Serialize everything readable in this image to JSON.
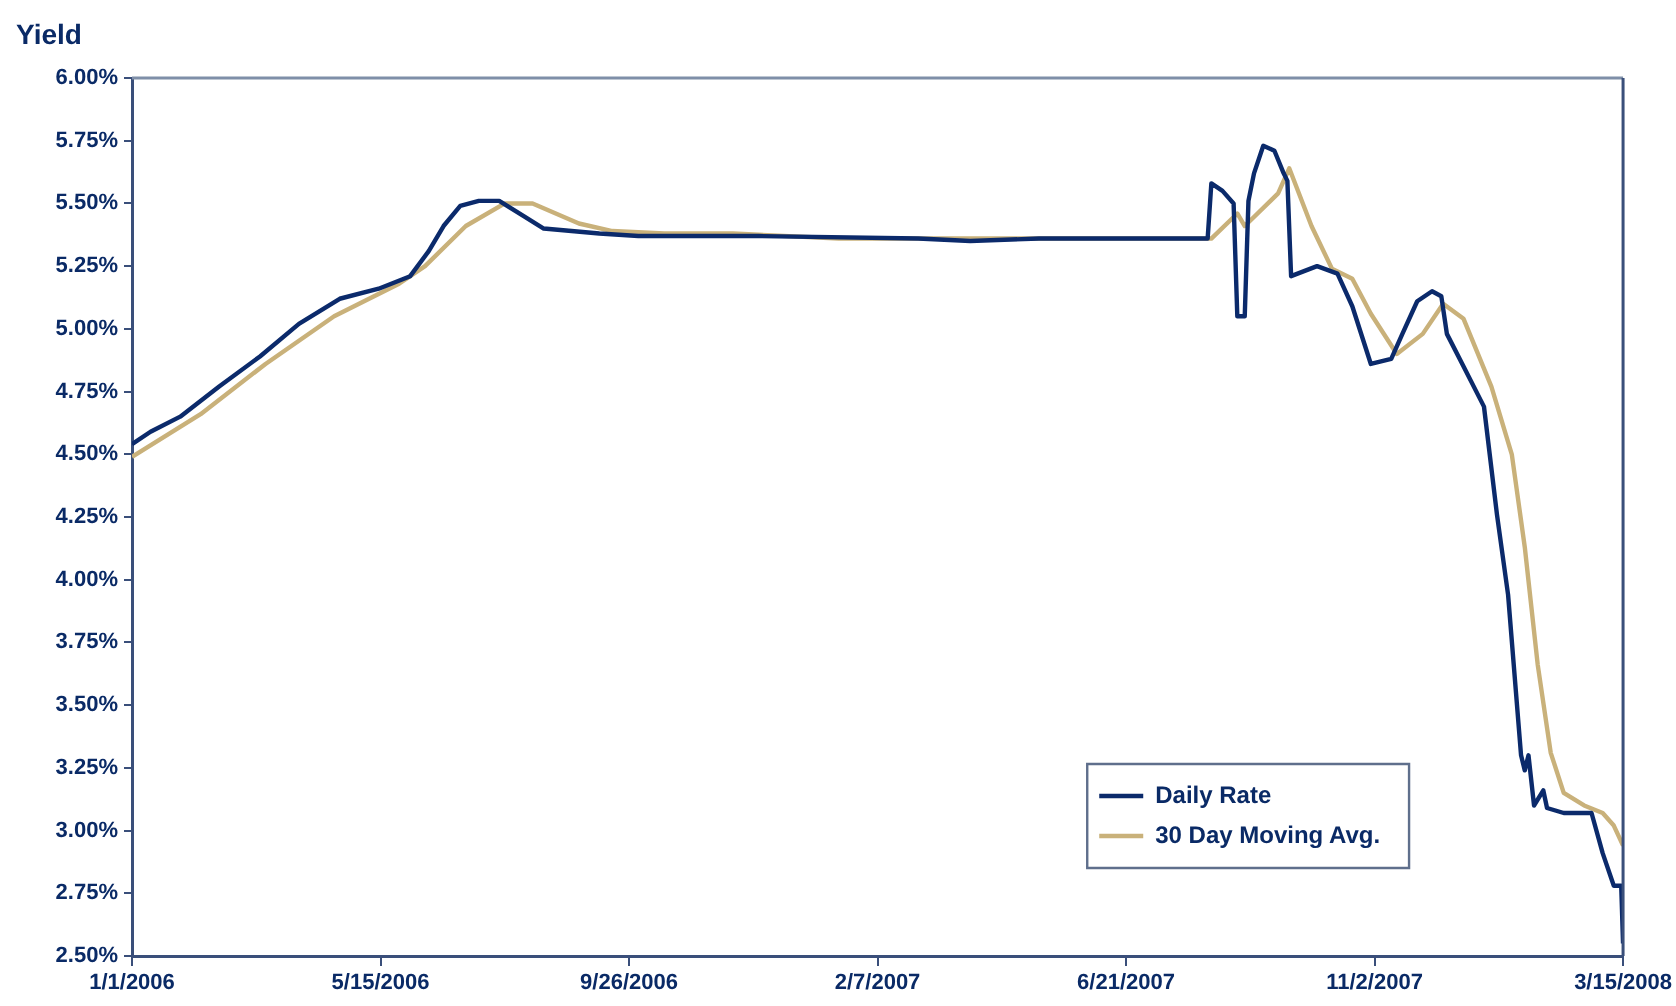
{
  "chart_data": {
    "type": "line",
    "ylabel": "Yield",
    "legend": "bottom right",
    "grid": false,
    "marker": "none",
    "line_style": "solid",
    "xlim": [
      "2006-01-01",
      "2008-03-15"
    ],
    "xticks": [
      {
        "value": "2006-01-01",
        "label": "1/1/2006"
      },
      {
        "value": "2006-05-15",
        "label": "5/15/2006"
      },
      {
        "value": "2006-09-26",
        "label": "9/26/2006"
      },
      {
        "value": "2007-02-07",
        "label": "2/7/2007"
      },
      {
        "value": "2007-06-21",
        "label": "6/21/2007"
      },
      {
        "value": "2007-11-02",
        "label": "11/2/2007"
      },
      {
        "value": "2008-03-15",
        "label": "3/15/2008"
      }
    ],
    "ylim": [
      2.5,
      6
    ],
    "yticks": [
      {
        "value": 2.5,
        "label": "2.50%"
      },
      {
        "value": 2.75,
        "label": "2.75%"
      },
      {
        "value": 3,
        "label": "3.00%"
      },
      {
        "value": 3.25,
        "label": "3.25%"
      },
      {
        "value": 3.5,
        "label": "3.50%"
      },
      {
        "value": 3.75,
        "label": "3.75%"
      },
      {
        "value": 4,
        "label": "4.00%"
      },
      {
        "value": 4.25,
        "label": "4.25%"
      },
      {
        "value": 4.5,
        "label": "4.50%"
      },
      {
        "value": 4.75,
        "label": "4.75%"
      },
      {
        "value": 5,
        "label": "5.00%"
      },
      {
        "value": 5.25,
        "label": "5.25%"
      },
      {
        "value": 5.5,
        "label": "5.50%"
      },
      {
        "value": 5.75,
        "label": "5.75%"
      },
      {
        "value": 6,
        "label": "6.00%"
      }
    ],
    "series": [
      {
        "name": "Daily Rate",
        "color": "#0b2a6b",
        "x": [
          "2006-01-01",
          "2006-01-11",
          "2006-01-27",
          "2006-02-17",
          "2006-03-11",
          "2006-04-01",
          "2006-04-23",
          "2006-05-14",
          "2006-05-31",
          "2006-06-10",
          "2006-06-18",
          "2006-06-27",
          "2006-07-07",
          "2006-07-18",
          "2006-07-31",
          "2006-08-11",
          "2006-09-10",
          "2006-10-01",
          "2006-12-05",
          "2007-03-01",
          "2007-03-29",
          "2007-05-05",
          "2007-08-04",
          "2007-08-06",
          "2007-08-12",
          "2007-08-18",
          "2007-08-20",
          "2007-08-24",
          "2007-08-26",
          "2007-08-29",
          "2007-09-03",
          "2007-09-09",
          "2007-09-14",
          "2007-09-16",
          "2007-09-18",
          "2007-10-02",
          "2007-10-13",
          "2007-10-21",
          "2007-10-31",
          "2007-11-11",
          "2007-11-17",
          "2007-11-25",
          "2007-12-03",
          "2007-12-08",
          "2007-12-11",
          "2007-12-20",
          "2007-12-31",
          "2008-01-07",
          "2008-01-13",
          "2008-01-20",
          "2008-01-22",
          "2008-01-24",
          "2008-01-27",
          "2008-02-01",
          "2008-02-03",
          "2008-02-12",
          "2008-02-27",
          "2008-03-04",
          "2008-03-10",
          "2008-03-14",
          "2008-03-15"
        ],
        "values": [
          4.54,
          4.59,
          4.65,
          4.77,
          4.89,
          5.02,
          5.12,
          5.16,
          5.21,
          5.31,
          5.41,
          5.49,
          5.51,
          5.51,
          5.45,
          5.4,
          5.38,
          5.37,
          5.37,
          5.36,
          5.35,
          5.36,
          5.36,
          5.58,
          5.55,
          5.5,
          5.05,
          5.05,
          5.51,
          5.62,
          5.73,
          5.71,
          5.62,
          5.59,
          5.21,
          5.25,
          5.22,
          5.09,
          4.86,
          4.88,
          4.98,
          5.11,
          5.15,
          5.13,
          4.98,
          4.85,
          4.69,
          4.26,
          3.94,
          3.3,
          3.24,
          3.3,
          3.1,
          3.16,
          3.09,
          3.07,
          3.07,
          2.91,
          2.78,
          2.78,
          2.55
        ]
      },
      {
        "name": "30 Day Moving Avg.",
        "color": "#c9b17a",
        "x": [
          "2006-01-01",
          "2006-02-07",
          "2006-03-14",
          "2006-04-20",
          "2006-05-25",
          "2006-06-08",
          "2006-06-30",
          "2006-07-21",
          "2006-08-05",
          "2006-08-30",
          "2006-09-17",
          "2006-10-15",
          "2006-11-21",
          "2007-01-17",
          "2007-08-06",
          "2007-08-20",
          "2007-08-24",
          "2007-09-11",
          "2007-09-17",
          "2007-09-29",
          "2007-10-10",
          "2007-10-21",
          "2007-10-31",
          "2007-11-14",
          "2007-11-28",
          "2007-12-09",
          "2007-12-20",
          "2008-01-04",
          "2008-01-15",
          "2008-01-22",
          "2008-01-29",
          "2008-02-05",
          "2008-02-12",
          "2008-02-23",
          "2008-03-04",
          "2008-03-10",
          "2008-03-15"
        ],
        "values": [
          4.49,
          4.66,
          4.86,
          5.05,
          5.18,
          5.25,
          5.41,
          5.5,
          5.5,
          5.42,
          5.39,
          5.38,
          5.38,
          5.36,
          5.36,
          5.46,
          5.41,
          5.54,
          5.64,
          5.41,
          5.24,
          5.2,
          5.06,
          4.9,
          4.98,
          5.1,
          5.04,
          4.77,
          4.5,
          4.13,
          3.66,
          3.31,
          3.15,
          3.1,
          3.07,
          3.02,
          2.94
        ]
      }
    ]
  }
}
